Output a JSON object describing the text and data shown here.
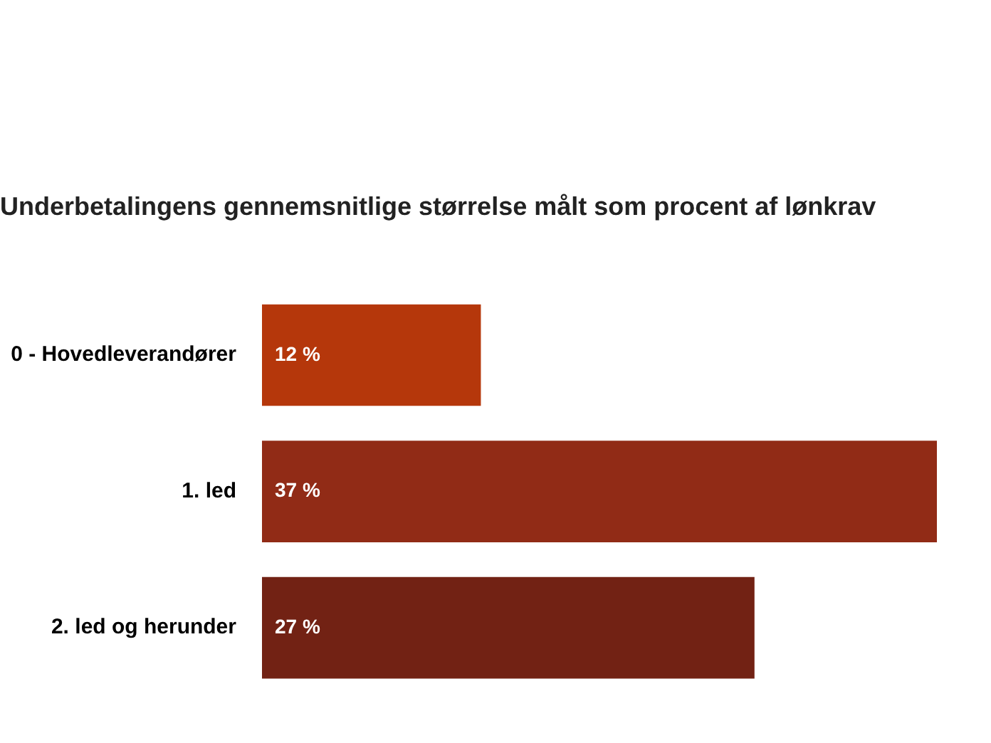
{
  "chart_data": {
    "type": "bar",
    "orientation": "horizontal",
    "title": "Underbetalingens gennemsnitlige størrelse målt som procent af lønkrav",
    "categories": [
      "0 - Hovedleverandører",
      "1. led",
      "2. led og herunder"
    ],
    "values": [
      12,
      37,
      27
    ],
    "colors": [
      "#b5370b",
      "#912b16",
      "#722214"
    ],
    "value_labels": [
      "12 %",
      "37 %",
      "27 %"
    ],
    "legend": false
  }
}
